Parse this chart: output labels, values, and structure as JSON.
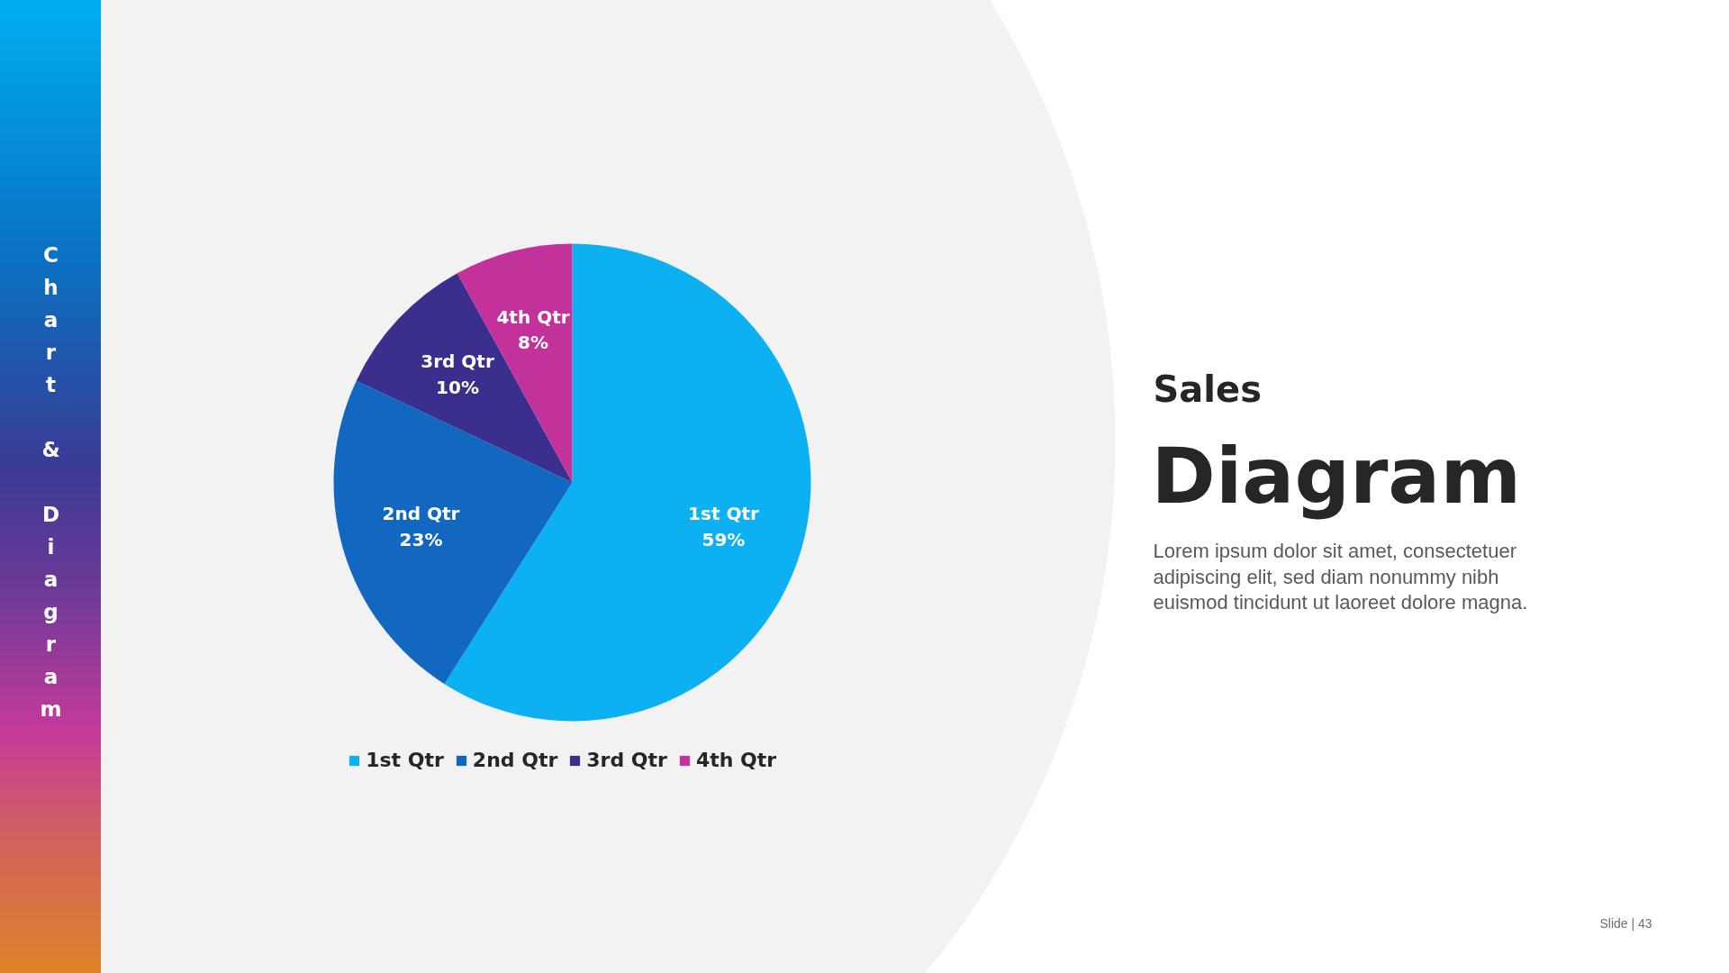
{
  "chart_data": {
    "type": "pie",
    "title": "Sales",
    "subtitle": "Diagram",
    "categories": [
      "1st Qtr",
      "2nd Qtr",
      "3rd Qtr",
      "4th Qtr"
    ],
    "values": [
      59,
      23,
      10,
      8
    ],
    "colors": [
      "#0db1f2",
      "#1268c0",
      "#3b2f8e",
      "#c2329a"
    ],
    "value_labels": [
      "59%",
      "23%",
      "10%",
      "8%"
    ],
    "legend": "bottom",
    "annotations": [
      "Chart & Diagram",
      "Lorem ipsum dolor sit amet, consectetuer adipiscing elit, sed diam nonummy nibh euismod tincidunt ut laoreet dolore magna.",
      "Slide | 43"
    ]
  }
}
